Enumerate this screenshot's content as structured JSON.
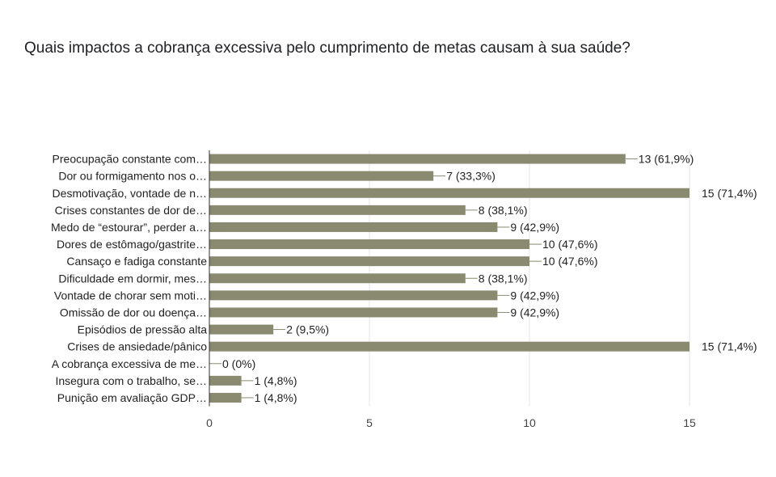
{
  "question": {
    "title": "Quais impactos a cobrança excessiva pelo cumprimento de metas causam à sua saúde?"
  },
  "colors": {
    "bar": "#8a8a70",
    "leader": "#8a8a70",
    "grid": "#e6e6e6",
    "axis": "#333333"
  },
  "chart_data": {
    "type": "bar",
    "orientation": "horizontal",
    "title": "",
    "xlabel": "",
    "ylabel": "",
    "xlim": [
      0,
      15
    ],
    "xticks": [
      0,
      5,
      10,
      15
    ],
    "grid": true,
    "legend": "none",
    "categories": [
      "Preocupação constante com…",
      "Dor ou formigamento nos o…",
      "Desmotivação, vontade de n…",
      "Crises constantes de dor de…",
      "Medo de “estourar”, perder a…",
      "Dores de estômago/gastrite…",
      "Cansaço e fadiga constante",
      "Dificuldade em dormir, mes…",
      "Vontade de chorar sem moti…",
      "Omissão de dor ou doença…",
      "Episódios de pressão alta",
      "Crises de ansiedade/pânico",
      "A cobrança excessiva de me…",
      "Insegura com o trabalho, se…",
      "Punição em avaliação GDP…"
    ],
    "values": [
      13,
      7,
      15,
      8,
      9,
      10,
      10,
      8,
      9,
      9,
      2,
      15,
      0,
      1,
      1
    ],
    "data_labels": [
      "13 (61,9%)",
      "7 (33,3%)",
      "15 (71,4%)",
      "8 (38,1%)",
      "9 (42,9%)",
      "10 (47,6%)",
      "10 (47,6%)",
      "8 (38,1%)",
      "9 (42,9%)",
      "9 (42,9%)",
      "2 (9,5%)",
      "15 (71,4%)",
      "0 (0%)",
      "1 (4,8%)",
      "1 (4,8%)"
    ]
  }
}
